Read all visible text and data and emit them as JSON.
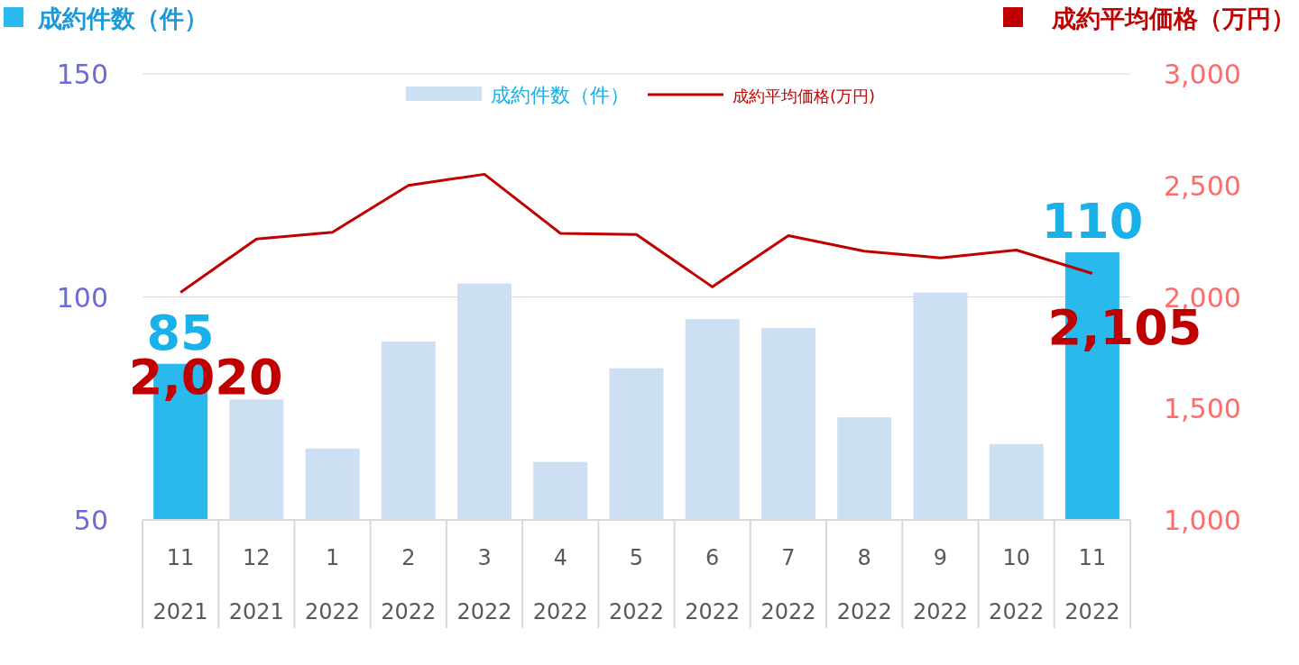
{
  "chart_data": {
    "type": "bar",
    "ylabel": "成約件数（件）",
    "y2label": "成約平均価格（万円）",
    "categories": [
      "11\n2021",
      "12\n2021",
      "1\n2022",
      "2\n2022",
      "3\n2022",
      "4\n2022",
      "5\n2022",
      "6\n2022",
      "7\n2022",
      "8\n2022",
      "9\n2022",
      "10\n2022",
      "11\n2022"
    ],
    "series": [
      {
        "name": "成約件数（件）",
        "color": "#cddff3",
        "colors": [
          "#29b9ec",
          "#cddff3",
          "#cddff3",
          "#cddff3",
          "#cddff3",
          "#cddff3",
          "#cddff3",
          "#cddff3",
          "#cddff3",
          "#cddff3",
          "#cddff3",
          "#cddff3",
          "#29b9ec"
        ],
        "values": [
          85,
          77,
          66,
          90,
          103,
          63,
          84,
          95,
          93,
          73,
          101,
          67,
          110
        ],
        "value_labels": [
          "85",
          null,
          null,
          null,
          null,
          null,
          null,
          null,
          null,
          null,
          null,
          null,
          "110"
        ]
      },
      {
        "name": "成約平均価格(万円)",
        "type": "line",
        "axis": "y2",
        "color": "#c00000",
        "values": [
          2020,
          2260,
          2290,
          2500,
          2550,
          2285,
          2280,
          2045,
          2275,
          2205,
          2175,
          2210,
          2105
        ],
        "value_labels": [
          "2,020",
          null,
          null,
          null,
          null,
          null,
          null,
          null,
          null,
          null,
          null,
          null,
          "2,105"
        ]
      }
    ],
    "ylim": [
      50,
      150
    ],
    "yticks": [
      50,
      100,
      150
    ],
    "y2lim": [
      1000,
      3000
    ],
    "y2ticks": [
      {
        "value": 1000,
        "label": "1,000"
      },
      {
        "value": 1500,
        "label": "1,500"
      },
      {
        "value": 2000,
        "label": "2,000"
      },
      {
        "value": 2500,
        "label": "2,500"
      },
      {
        "value": 3000,
        "label": "3,000"
      }
    ],
    "grid": "y",
    "legend": "top",
    "line_style": "solid"
  }
}
